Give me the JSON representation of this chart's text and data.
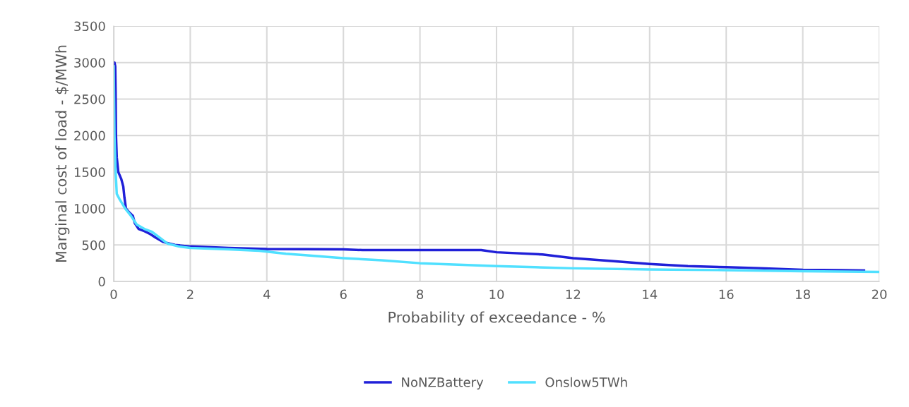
{
  "chart_data": {
    "type": "line",
    "xlabel": "Probability of exceedance - %",
    "ylabel": "Marginal cost of load - $/MWh",
    "xlim": [
      0,
      20
    ],
    "xticks": [
      0,
      2,
      4,
      6,
      8,
      10,
      12,
      14,
      16,
      18,
      20
    ],
    "ylim": [
      0,
      3500
    ],
    "yticks": [
      0,
      500,
      1000,
      1500,
      2000,
      2500,
      3000,
      3500
    ],
    "grid": true,
    "legend": "bottom",
    "marker": "none",
    "line_style": "solid",
    "series": [
      {
        "name": "NoNZBattery",
        "color": "#2020d8",
        "x": [
          0,
          0.02,
          0.04,
          0.05,
          0.06,
          0.08,
          0.12,
          0.2,
          0.25,
          0.28,
          0.32,
          0.4,
          0.5,
          0.55,
          0.65,
          0.8,
          0.95,
          1.1,
          1.3,
          1.6,
          2,
          3,
          4,
          6,
          6.5,
          9.6,
          10,
          11.2,
          12,
          13,
          14,
          15,
          16,
          17,
          18,
          19,
          19.6
        ],
        "values": [
          3000,
          3000,
          2950,
          2600,
          2000,
          1700,
          1500,
          1400,
          1300,
          1150,
          1000,
          950,
          900,
          800,
          720,
          690,
          650,
          600,
          540,
          500,
          480,
          460,
          445,
          440,
          430,
          430,
          400,
          370,
          320,
          280,
          240,
          210,
          195,
          180,
          160,
          155,
          150
        ]
      },
      {
        "name": "Onslow5TWh",
        "color": "#50e0ff",
        "x": [
          0,
          0.02,
          0.05,
          0.08,
          0.15,
          0.3,
          0.45,
          0.6,
          0.8,
          1,
          1.2,
          1.4,
          1.7,
          2,
          3,
          3.8,
          4.5,
          5,
          6,
          7,
          8,
          9,
          10,
          11,
          12,
          14,
          16,
          18,
          20
        ],
        "values": [
          2950,
          2000,
          1500,
          1200,
          1130,
          1000,
          900,
          780,
          720,
          680,
          600,
          520,
          480,
          460,
          440,
          420,
          380,
          360,
          320,
          290,
          250,
          230,
          210,
          195,
          180,
          165,
          155,
          140,
          130
        ]
      }
    ]
  }
}
